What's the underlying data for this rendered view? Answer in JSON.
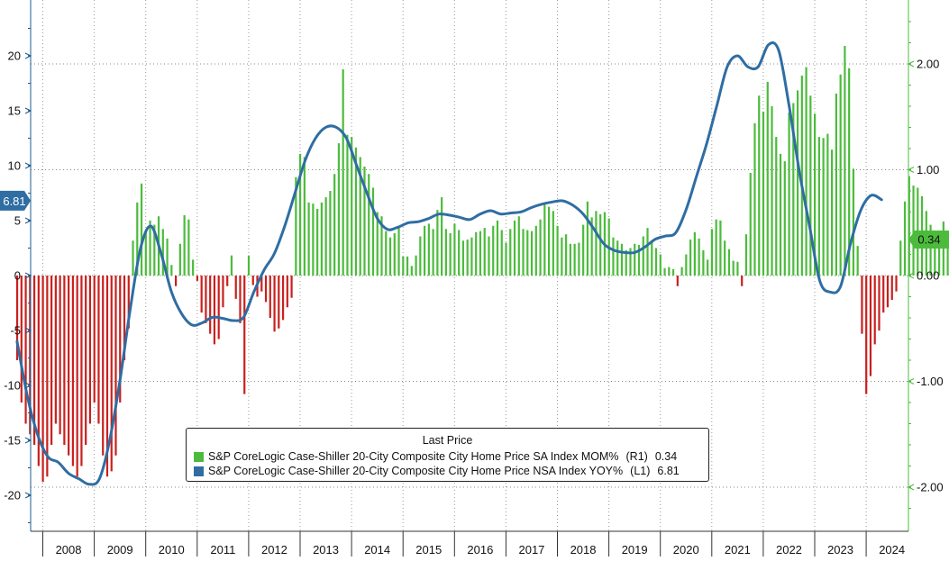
{
  "chart_data": {
    "type": "bar+line",
    "title": "",
    "x_tick_labels": [
      "2008",
      "2009",
      "2010",
      "2011",
      "2012",
      "2013",
      "2014",
      "2015",
      "2016",
      "2017",
      "2018",
      "2019",
      "2020",
      "2021",
      "2022",
      "2023",
      "2024"
    ],
    "left_axis": {
      "ylim": [
        -23,
        25
      ],
      "ticks": [
        -20,
        -15,
        -10,
        -5,
        0,
        5,
        10,
        15,
        20
      ],
      "tick_labels": [
        "-20",
        "-15",
        "-10",
        "-5",
        "0",
        "5",
        "10",
        "15",
        "20"
      ]
    },
    "right_axis": {
      "ylim": [
        -2.4,
        2.6
      ],
      "ticks": [
        -2,
        -1,
        0,
        1,
        2
      ],
      "tick_labels": [
        "-2.00",
        "-1.00",
        "0.00",
        "1.00",
        "2.00"
      ]
    },
    "grid": true,
    "legend": {
      "title": "Last Price",
      "placement": "bottom-center"
    },
    "series": [
      {
        "name": "S&P CoreLogic Case-Shiller 20-City Composite City Home Price SA Index MOM%",
        "type": "bar",
        "axis": "R1",
        "last_value": "0.34",
        "positive_color": "#4cbb3c",
        "negative_color": "#c8201e",
        "start": "2007-07",
        "frequency": "monthly",
        "values": [
          -0.8,
          -1.2,
          -1.4,
          -1.5,
          -1.6,
          -1.8,
          -1.95,
          -1.9,
          -1.6,
          -1.4,
          -1.5,
          -1.6,
          -1.7,
          -1.8,
          -1.9,
          -1.8,
          -1.6,
          -1.4,
          -1.2,
          -1.4,
          -1.7,
          -1.9,
          -1.85,
          -1.7,
          -1.2,
          -0.8,
          -0.5,
          0.33,
          0.69,
          0.87,
          0.42,
          0.52,
          0.48,
          0.56,
          0.44,
          0.35,
          0.1,
          -0.1,
          0.3,
          0.57,
          0.53,
          0.15,
          -0.05,
          -0.35,
          -0.45,
          -0.55,
          -0.65,
          -0.6,
          -0.3,
          -0.1,
          0.19,
          -0.22,
          -0.45,
          -1.12,
          0.19,
          -0.09,
          -0.2,
          -0.15,
          -0.25,
          -0.4,
          -0.53,
          -0.5,
          -0.42,
          -0.3,
          -0.21,
          0.93,
          1.15,
          1.12,
          0.69,
          0.68,
          0.63,
          0.69,
          0.74,
          0.8,
          0.96,
          1.25,
          1.95,
          1.33,
          1.31,
          1.21,
          1.12,
          1.03,
          0.96,
          0.83,
          0.6,
          0.56,
          0.42,
          0.36,
          0.4,
          0.45,
          0.18,
          0.18,
          0.09,
          0.19,
          0.37,
          0.47,
          0.49,
          0.44,
          0.62,
          0.74,
          0.44,
          0.4,
          0.49,
          0.43,
          0.33,
          0.34,
          0.36,
          0.41,
          0.42,
          0.45,
          0.37,
          0.47,
          0.52,
          0.43,
          0.31,
          0.44,
          0.52,
          0.56,
          0.44,
          0.43,
          0.42,
          0.47,
          0.53,
          0.68,
          0.65,
          0.61,
          0.47,
          0.36,
          0.39,
          0.3,
          0.3,
          0.31,
          0.48,
          0.7,
          0.55,
          0.61,
          0.58,
          0.6,
          0.54,
          0.36,
          0.33,
          0.3,
          0.24,
          0.26,
          0.3,
          0.29,
          0.37,
          0.45,
          0.32,
          0.26,
          0.2,
          0.07,
          0.08,
          0.06,
          -0.1,
          0.08,
          0.2,
          0.34,
          0.41,
          0.35,
          0.24,
          0.15,
          0.44,
          0.53,
          0.52,
          0.33,
          0.25,
          0.14,
          0.13,
          -0.1,
          0.39,
          0.97,
          1.44,
          1.7,
          1.55,
          1.83,
          1.6,
          1.31,
          1.15,
          1.08,
          1.54,
          1.63,
          1.75,
          1.89,
          1.97,
          1.7,
          1.53,
          1.31,
          1.3,
          1.34,
          1.19,
          1.72,
          1.9,
          2.17,
          1.96,
          1.01,
          0.28,
          -0.55,
          -1.12,
          -0.95,
          -0.65,
          -0.52,
          -0.35,
          -0.3,
          -0.23,
          -0.15,
          0.33,
          0.7,
          0.94,
          0.85,
          0.83,
          0.75,
          0.61,
          0.48,
          0.3,
          0.35,
          0.51,
          0.4,
          0.34
        ],
        "bar_interval_months": 1
      },
      {
        "name": "S&P CoreLogic Case-Shiller 20-City Composite City Home Price NSA Index YOY%",
        "type": "line",
        "axis": "L1",
        "last_value": "6.81",
        "color": "#2f6da3",
        "x": [
          2007.5,
          2007.7,
          2007.9,
          2008.1,
          2008.3,
          2008.5,
          2008.7,
          2008.9,
          2009.1,
          2009.3,
          2009.5,
          2009.7,
          2009.9,
          2010.1,
          2010.3,
          2010.5,
          2010.7,
          2010.9,
          2011.1,
          2011.3,
          2011.5,
          2011.7,
          2011.9,
          2012.1,
          2012.3,
          2012.5,
          2012.7,
          2012.9,
          2013.1,
          2013.3,
          2013.5,
          2013.7,
          2013.9,
          2014.1,
          2014.3,
          2014.5,
          2014.7,
          2014.9,
          2015.1,
          2015.3,
          2015.5,
          2015.7,
          2015.9,
          2016.1,
          2016.3,
          2016.5,
          2016.7,
          2016.9,
          2017.1,
          2017.3,
          2017.5,
          2017.7,
          2017.9,
          2018.1,
          2018.3,
          2018.5,
          2018.7,
          2018.9,
          2019.1,
          2019.3,
          2019.5,
          2019.7,
          2019.9,
          2020.1,
          2020.3,
          2020.5,
          2020.7,
          2020.9,
          2021.1,
          2021.3,
          2021.5,
          2021.7,
          2021.9,
          2022.1,
          2022.3,
          2022.5,
          2022.7,
          2022.9,
          2023.1,
          2023.3,
          2023.5,
          2023.7,
          2023.9,
          2024.1,
          2024.3
        ],
        "values": [
          -6.0,
          -11.0,
          -14.5,
          -16.5,
          -17.0,
          -18.0,
          -18.5,
          -19.0,
          -18.5,
          -15.0,
          -9.5,
          -3.0,
          2.5,
          4.5,
          2.0,
          -1.5,
          -3.5,
          -4.5,
          -4.3,
          -3.8,
          -3.9,
          -4.1,
          -3.8,
          -1.5,
          0.5,
          2.0,
          4.5,
          7.5,
          10.5,
          12.5,
          13.5,
          13.5,
          12.5,
          10.0,
          7.5,
          5.2,
          4.2,
          4.4,
          4.8,
          4.9,
          5.2,
          5.6,
          5.5,
          5.3,
          5.1,
          5.6,
          5.9,
          5.6,
          5.7,
          5.8,
          6.2,
          6.5,
          6.7,
          6.8,
          6.4,
          5.6,
          4.3,
          2.9,
          2.3,
          2.1,
          2.1,
          2.6,
          3.3,
          3.6,
          3.9,
          6.0,
          9.0,
          12.0,
          15.5,
          19.0,
          20.0,
          19.0,
          19.0,
          21.0,
          20.5,
          15.5,
          9.5,
          4.5,
          -0.5,
          -1.5,
          -1.0,
          3.0,
          6.0,
          7.3,
          6.9
        ]
      }
    ]
  }
}
